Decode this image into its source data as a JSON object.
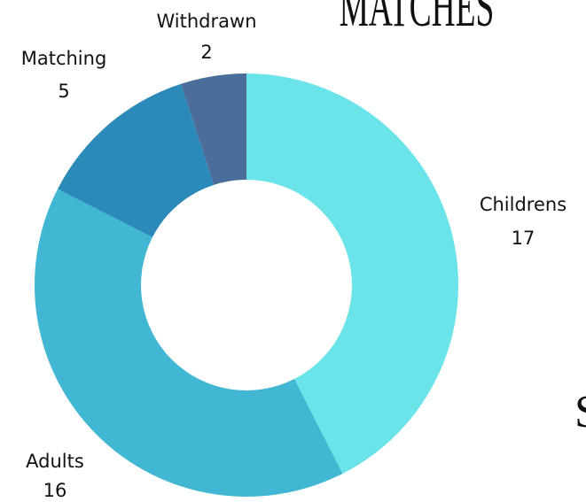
{
  "chart_data": {
    "type": "pie",
    "title": "MATCHES",
    "annotation": "S",
    "categories": [
      "Childrens",
      "Adults",
      "Matching",
      "Withdrawn"
    ],
    "values": [
      17,
      16,
      5,
      2
    ],
    "colors": [
      "#6ae4e8",
      "#42b7d4",
      "#2b8ab9",
      "#4b6d99"
    ]
  }
}
